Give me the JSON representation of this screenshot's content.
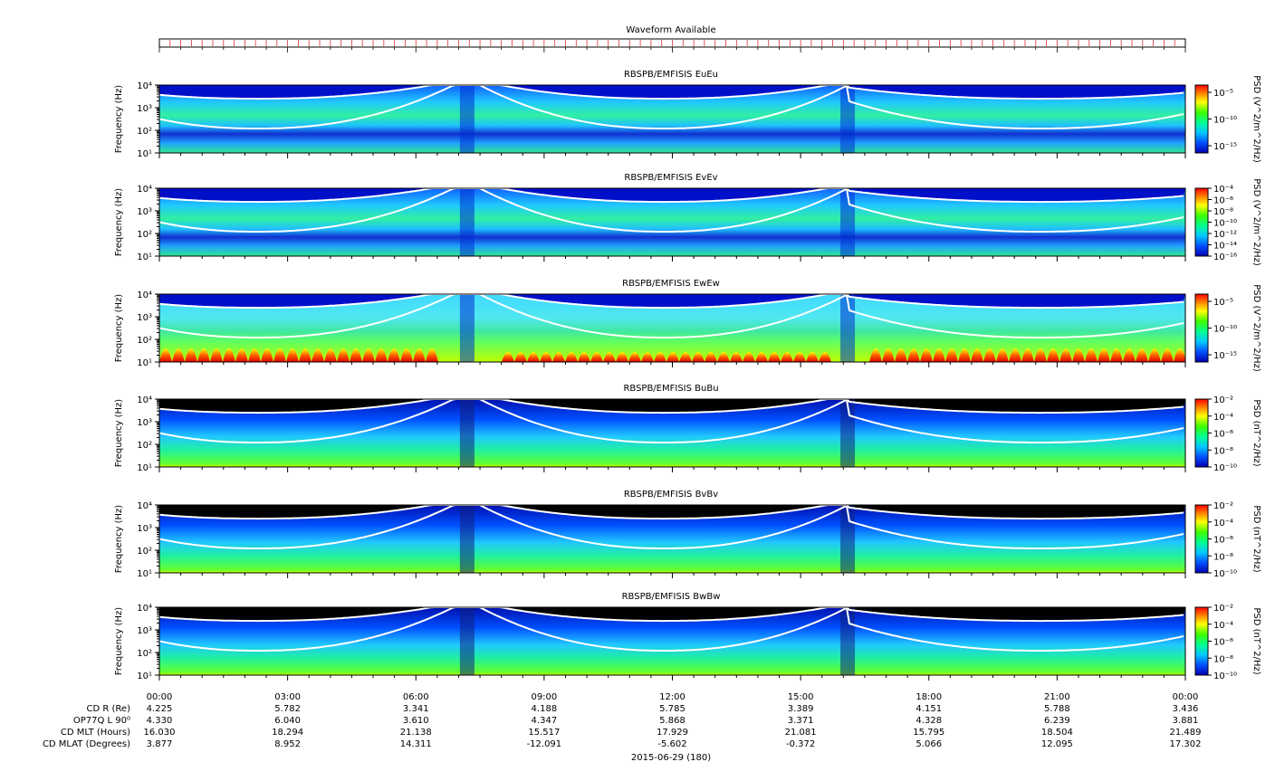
{
  "waveform": {
    "title": "Waveform Available"
  },
  "panels": [
    {
      "title": "RBSPB/EMFISIS  EuEu",
      "colorbar_label": "PSD (V^2/m^2/Hz)",
      "colorbar_ticks": [
        "10⁻⁵",
        "10⁻¹⁰",
        "10⁻¹⁵"
      ],
      "ylabel": "Frequency (Hz)",
      "background": "wave",
      "band": false
    },
    {
      "title": "RBSPB/EMFISIS  EvEv",
      "colorbar_label": "PSD (V^2/m^2/Hz)",
      "colorbar_ticks": [
        "10⁻⁴",
        "10⁻⁶",
        "10⁻⁸",
        "10⁻¹⁰",
        "10⁻¹²",
        "10⁻¹⁴",
        "10⁻¹⁶"
      ],
      "ylabel": "Frequency (Hz)",
      "background": "wave",
      "band": false
    },
    {
      "title": "RBSPB/EMFISIS  EwEw",
      "colorbar_label": "PSD (V^2/m^2/Hz)",
      "colorbar_ticks": [
        "10⁻⁵",
        "10⁻¹⁰",
        "10⁻¹⁵"
      ],
      "ylabel": "Frequency (Hz)",
      "background": "light",
      "band": true
    },
    {
      "title": "RBSPB/EMFISIS  BuBu",
      "colorbar_label": "PSD (nT^2/Hz)",
      "colorbar_ticks": [
        "10⁻²",
        "10⁻⁴",
        "10⁻⁶",
        "10⁻⁸",
        "10⁻¹⁰"
      ],
      "ylabel": "Frequency (Hz)",
      "background": "black",
      "band": false
    },
    {
      "title": "RBSPB/EMFISIS  BvBv",
      "colorbar_label": "PSD (nT^2/Hz)",
      "colorbar_ticks": [
        "10⁻²",
        "10⁻⁴",
        "10⁻⁶",
        "10⁻⁸",
        "10⁻¹⁰"
      ],
      "ylabel": "Frequency (Hz)",
      "background": "black",
      "band": false
    },
    {
      "title": "RBSPB/EMFISIS  BwBw",
      "colorbar_label": "PSD (nT^2/Hz)",
      "colorbar_ticks": [
        "10⁻²",
        "10⁻⁴",
        "10⁻⁶",
        "10⁻⁸",
        "10⁻¹⁰"
      ],
      "ylabel": "Frequency (Hz)",
      "background": "black",
      "band": false
    }
  ],
  "chart_data": {
    "type": "heatmap",
    "x_ticks": [
      "00:00",
      "03:00",
      "06:00",
      "09:00",
      "12:00",
      "15:00",
      "18:00",
      "21:00",
      "00:00"
    ],
    "y_ticks": [
      "10⁴",
      "10³",
      "10²",
      "10¹"
    ],
    "ylim": [
      10,
      10000
    ],
    "y_scale": "log",
    "xlim_hours": [
      0,
      24
    ],
    "curve_troughs_hours": [
      2.3,
      11.8,
      20.6
    ],
    "curve_apogee_hours": [
      7.2,
      16.1
    ],
    "ephemeris": {
      "labels": [
        "CD R (Re)",
        "OP77Q L 90⁰",
        "CD MLT (Hours)",
        "CD MLAT (Degrees)"
      ],
      "values": [
        [
          "4.225",
          "5.782",
          "3.341",
          "4.188",
          "5.785",
          "3.389",
          "4.151",
          "5.788",
          "3.436"
        ],
        [
          "4.330",
          "6.040",
          "3.610",
          "4.347",
          "5.868",
          "3.371",
          "4.328",
          "6.239",
          "3.881"
        ],
        [
          "16.030",
          "18.294",
          "21.138",
          "15.517",
          "17.929",
          "21.081",
          "15.795",
          "18.504",
          "21.489"
        ],
        [
          "3.877",
          "8.952",
          "14.311",
          "-12.091",
          "-5.602",
          "-0.372",
          "5.066",
          "12.095",
          "17.302"
        ]
      ]
    },
    "date_label": "2015-06-29 (180)"
  }
}
